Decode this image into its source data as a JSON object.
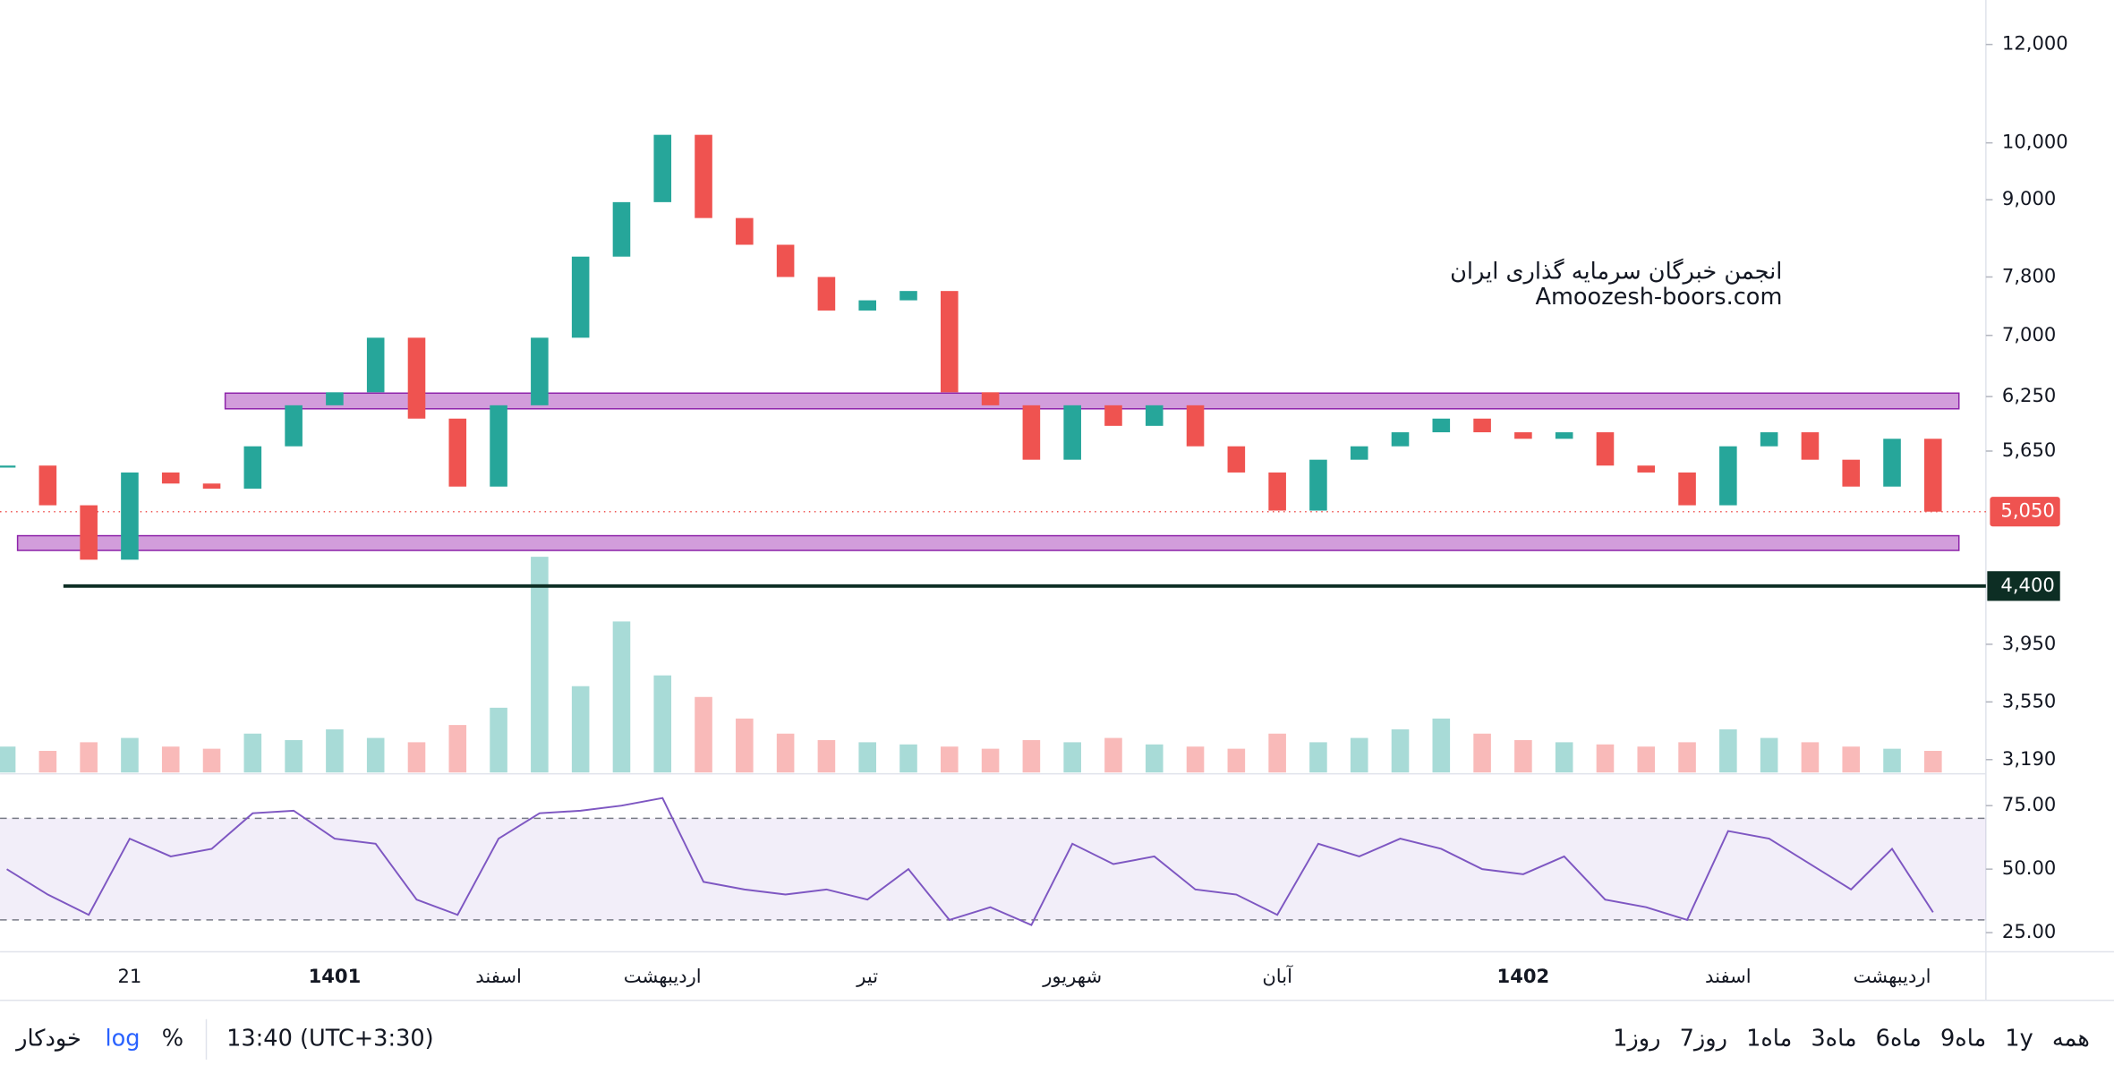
{
  "chart_data": {
    "type": "candlestick",
    "log_scale": true,
    "ylim": [
      3115,
      13030
    ],
    "yticks": [
      {
        "value": 12000,
        "label": "12,000"
      },
      {
        "value": 10000,
        "label": "10,000"
      },
      {
        "value": 9000,
        "label": "9,000"
      },
      {
        "value": 7800,
        "label": "7,800"
      },
      {
        "value": 7000,
        "label": "7,000"
      },
      {
        "value": 6250,
        "label": "6,250"
      },
      {
        "value": 5650,
        "label": "5,650"
      },
      {
        "value": 3950,
        "label": "3,950"
      },
      {
        "value": 3550,
        "label": "3,550"
      },
      {
        "value": 3190,
        "label": "3,190"
      }
    ],
    "categories": [
      null,
      null,
      null,
      "21",
      null,
      null,
      null,
      null,
      "1401",
      null,
      null,
      null,
      "اسفند",
      null,
      null,
      null,
      "اردیبهشت",
      null,
      null,
      null,
      null,
      "تیر",
      null,
      null,
      null,
      null,
      "شهریور",
      null,
      null,
      null,
      null,
      "آبان",
      null,
      null,
      null,
      null,
      null,
      "1402",
      null,
      null,
      null,
      null,
      "اسفند",
      null,
      null,
      null,
      "اردیبهشت",
      null
    ],
    "close": [
      5500,
      5110,
      4620,
      5430,
      5320,
      5270,
      5700,
      6150,
      6300,
      6970,
      6000,
      5290,
      6150,
      6970,
      8100,
      8960,
      10150,
      8700,
      8280,
      7800,
      7330,
      7470,
      7600,
      6300,
      6150,
      5560,
      6150,
      5920,
      6150,
      5700,
      5430,
      5060,
      5560,
      5700,
      5850,
      6000,
      5850,
      5780,
      5850,
      5500,
      5430,
      5110,
      5700,
      5850,
      5560,
      5290,
      5780,
      5050
    ],
    "up_color": "#26a69a",
    "down_color": "#ef5350",
    "zones": [
      [
        6110,
        6290
      ],
      [
        4700,
        4830
      ]
    ],
    "zone_color": "#ba68c8",
    "last_price": {
      "value": 5050,
      "label": "5,050"
    },
    "support": {
      "value": 4400,
      "label": "4,400"
    },
    "volume": [
      12,
      10,
      14,
      16,
      12,
      11,
      18,
      15,
      20,
      16,
      14,
      22,
      30,
      100,
      40,
      70,
      45,
      35,
      25,
      18,
      15,
      14,
      13,
      12,
      11,
      15,
      14,
      16,
      13,
      12,
      11,
      18,
      14,
      16,
      20,
      25,
      18,
      15,
      14,
      13,
      12,
      14,
      20,
      16,
      14,
      12,
      11,
      10
    ],
    "annotations": [
      "انجمن خبرگان سرمایه گذاری ایران",
      "Amoozesh-boors.com"
    ]
  },
  "rsi": {
    "ylim": [
      18,
      87
    ],
    "yticks": [
      {
        "value": 75,
        "label": "75.00"
      },
      {
        "value": 50,
        "label": "50.00"
      },
      {
        "value": 25,
        "label": "25.00"
      }
    ],
    "levels": [
      70,
      30
    ],
    "color": "#7e57c2",
    "values": [
      50,
      40,
      32,
      62,
      55,
      58,
      72,
      73,
      62,
      60,
      38,
      32,
      62,
      72,
      73,
      75,
      78,
      45,
      42,
      40,
      42,
      38,
      50,
      30,
      35,
      28,
      60,
      52,
      55,
      42,
      40,
      32,
      60,
      55,
      62,
      58,
      50,
      48,
      55,
      38,
      35,
      30,
      65,
      62,
      52,
      42,
      58,
      33
    ]
  },
  "toolbar": {
    "ranges": [
      "همه",
      "1y",
      "9ماه",
      "6ماه",
      "3ماه",
      "1ماه",
      "7روز",
      "1روز"
    ],
    "time": "13:40 (UTC+3:30)",
    "percent": "%",
    "log": "log",
    "auto": "خودکار"
  }
}
